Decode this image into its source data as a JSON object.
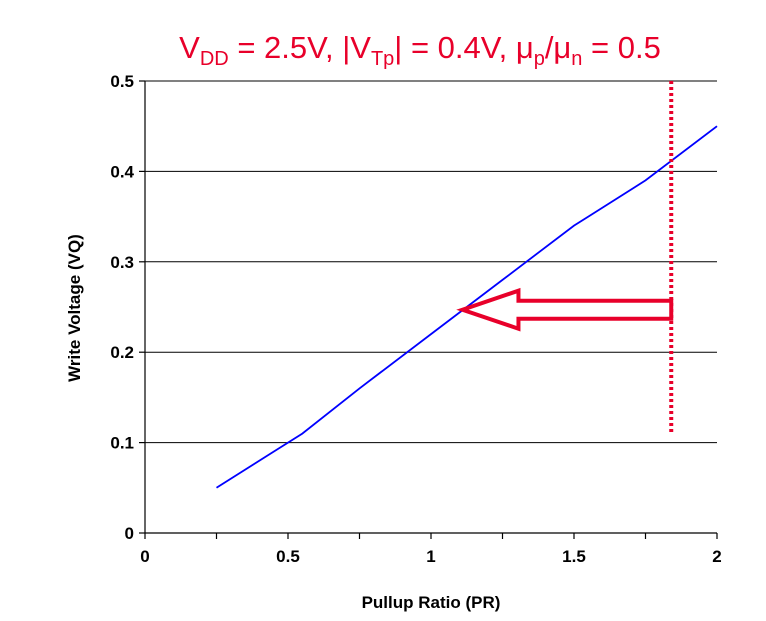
{
  "chart_data": {
    "type": "line",
    "title": {
      "text": "VDD = 2.5V, |VTp| = 0.4V, μp/μn = 0.5",
      "parts": [
        {
          "t": "V",
          "sub": false
        },
        {
          "t": "DD",
          "sub": true
        },
        {
          "t": " = 2.5V, |V",
          "sub": false
        },
        {
          "t": "Tp",
          "sub": true
        },
        {
          "t": "| = 0.4V, μ",
          "sub": false
        },
        {
          "t": "p",
          "sub": true
        },
        {
          "t": "/μ",
          "sub": false
        },
        {
          "t": "n",
          "sub": true
        },
        {
          "t": " = 0.5",
          "sub": false
        }
      ]
    },
    "xlabel": "Pullup Ratio (PR)",
    "ylabel": "Write Voltage (VQ)",
    "xlim": [
      0,
      2
    ],
    "ylim": [
      0,
      0.5
    ],
    "xticks": [
      0,
      0.5,
      1,
      1.5,
      2
    ],
    "xtick_labels": [
      "0",
      "0.5",
      "1",
      "1.5",
      "2"
    ],
    "yticks": [
      0,
      0.1,
      0.2,
      0.3,
      0.4,
      0.5
    ],
    "ytick_labels": [
      "0",
      "0.1",
      "0.2",
      "0.3",
      "0.4",
      "0.5"
    ],
    "grid": "horizontal",
    "series": [
      {
        "color": "#0000ff",
        "x": [
          0.25,
          0.45,
          0.55,
          0.75,
          1.0,
          1.25,
          1.5,
          1.55,
          1.75,
          2.0
        ],
        "y": [
          0.05,
          0.09,
          0.11,
          0.16,
          0.22,
          0.28,
          0.34,
          0.35,
          0.39,
          0.45
        ]
      }
    ],
    "annotations": {
      "vline": {
        "x": 1.84,
        "y_from": 0.11,
        "y_to": 0.5,
        "color": "#e8002a",
        "style": "dotted"
      },
      "arrow": {
        "from_x": 1.84,
        "to_x": 1.11,
        "y": 0.247,
        "color": "#e8002a",
        "style": "hollow"
      }
    },
    "colors": {
      "title": "#e8002a",
      "axis": "#000000",
      "grid": "#000000"
    }
  }
}
